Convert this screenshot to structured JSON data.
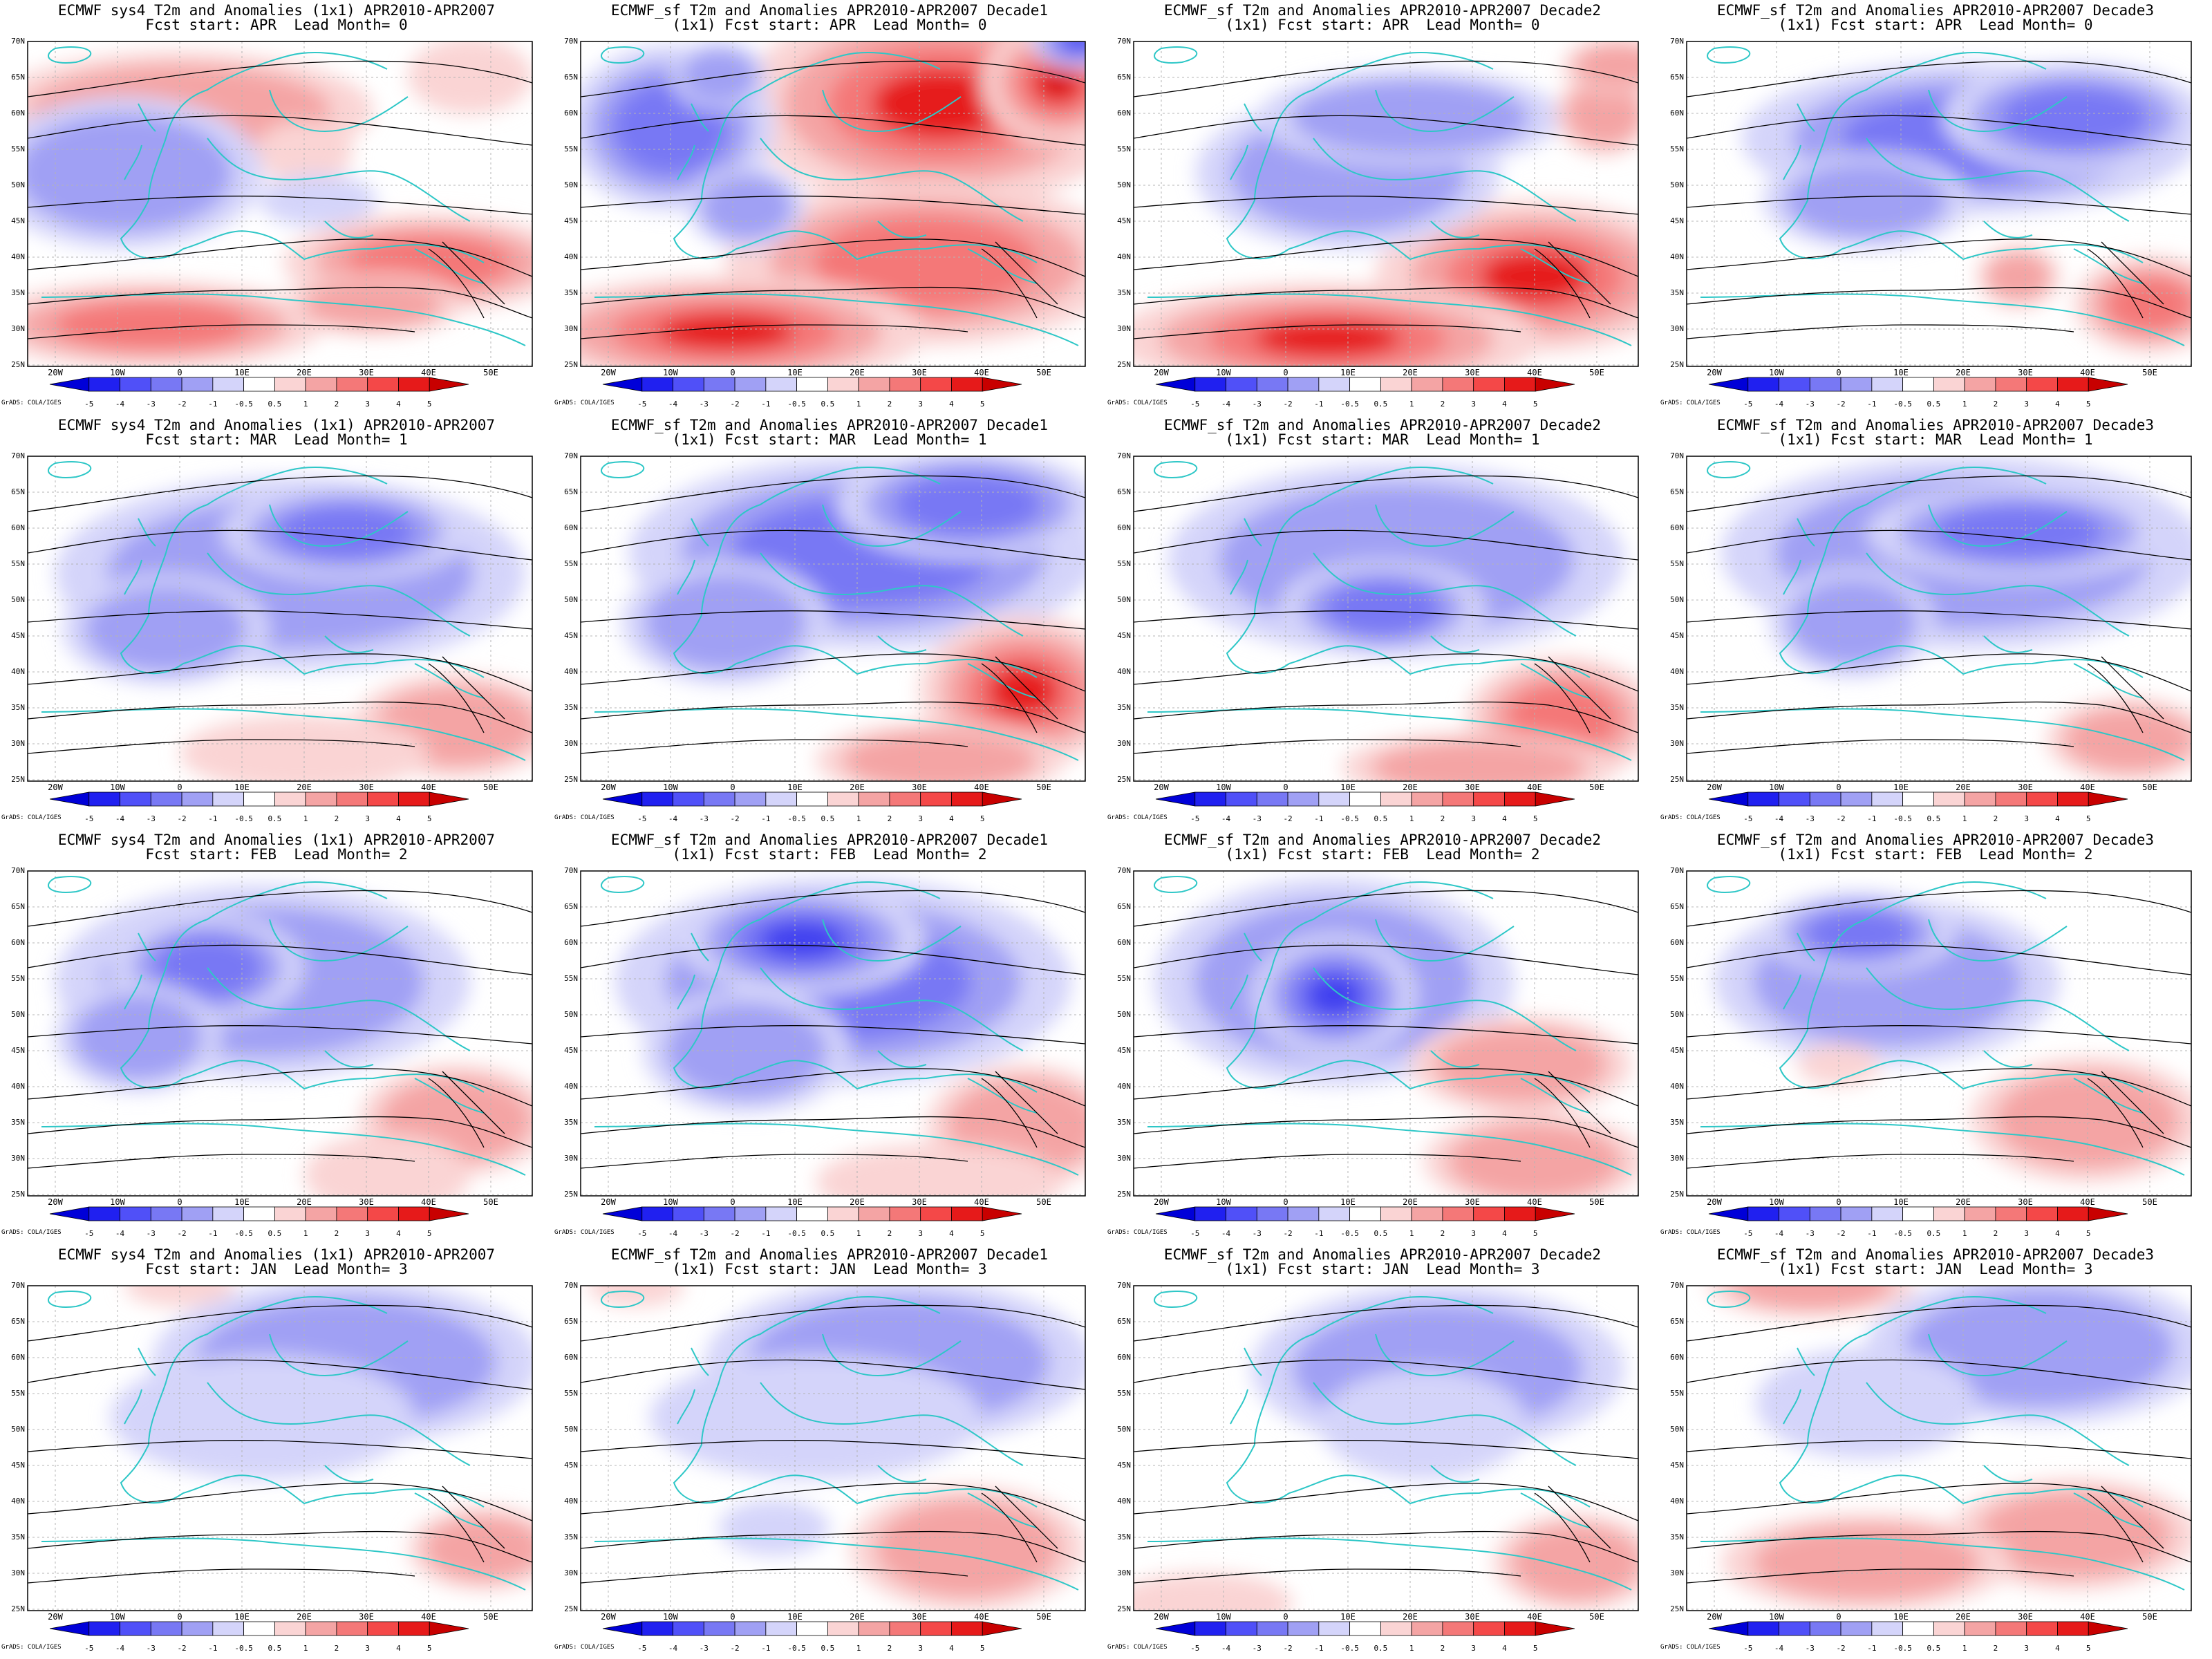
{
  "common": {
    "lat_labels": [
      "70N",
      "65N",
      "60N",
      "55N",
      "50N",
      "45N",
      "40N",
      "35N",
      "30N",
      "25N"
    ],
    "lon_labels": [
      "20W",
      "10W",
      "0",
      "10E",
      "20E",
      "30E",
      "40E",
      "50E"
    ],
    "colorbar_labels": [
      "-5",
      "-4",
      "-3",
      "-2",
      "-1",
      "-0.5",
      "0.5",
      "1",
      "2",
      "3",
      "4",
      "5"
    ],
    "colorbar_colors": [
      "#0000d8",
      "#2020f0",
      "#5050f8",
      "#7878f4",
      "#a0a0f4",
      "#d4d4fa",
      "#ffffff",
      "#fad4d4",
      "#f4a4a4",
      "#f47878",
      "#f44848",
      "#e61a1a",
      "#c80000"
    ],
    "credit": "GrADS: COLA/IGES",
    "colors": {
      "land_border": "#2ec7c7",
      "contour": "#000000",
      "grid": "#b4b4b4"
    }
  },
  "panels": [
    {
      "title1": "ECMWF sys4 T2m and Anomalies (1x1) APR2010-APR2007",
      "title2": "Fcst start: APR  Lead Month= 0",
      "blobs": [
        [
          "r",
          260,
          160,
          280,
          85,
          2
        ],
        [
          "r",
          620,
          380,
          210,
          70,
          3
        ],
        [
          "r",
          220,
          470,
          250,
          62,
          3
        ],
        [
          "r",
          540,
          440,
          130,
          45,
          2
        ],
        [
          "r",
          440,
          220,
          70,
          45,
          1
        ],
        [
          "b",
          180,
          250,
          200,
          110,
          2
        ],
        [
          "b",
          460,
          290,
          85,
          38,
          1
        ],
        [
          "r",
          680,
          110,
          90,
          55,
          1
        ]
      ]
    },
    {
      "title1": "ECMWF_sf T2m and Anomalies APR2010-APR2007 Decade1",
      "title2": "(1x1) Fcst start: APR  Lead Month= 0",
      "blobs": [
        [
          "r",
          560,
          150,
          290,
          150,
          4
        ],
        [
          "r",
          540,
          380,
          290,
          120,
          3
        ],
        [
          "r",
          250,
          480,
          290,
          80,
          4
        ],
        [
          "r",
          730,
          120,
          110,
          90,
          5
        ],
        [
          "b",
          170,
          185,
          150,
          120,
          3
        ],
        [
          "b",
          280,
          300,
          85,
          60,
          2
        ],
        [
          "b",
          240,
          110,
          70,
          50,
          2
        ],
        [
          "b",
          760,
          60,
          70,
          40,
          4
        ]
      ]
    },
    {
      "title1": "ECMWF_sf T2m and Anomalies APR2010-APR2007 Decade2",
      "title2": "(1x1) Fcst start: APR  Lead Month= 0",
      "blobs": [
        [
          "r",
          620,
          400,
          230,
          110,
          4
        ],
        [
          "r",
          320,
          490,
          310,
          80,
          4
        ],
        [
          "b",
          350,
          250,
          220,
          110,
          2
        ],
        [
          "b",
          440,
          170,
          220,
          70,
          2
        ],
        [
          "r",
          720,
          165,
          70,
          60,
          2
        ],
        [
          "r",
          740,
          95,
          80,
          40,
          2
        ]
      ]
    },
    {
      "title1": "ECMWF_sf T2m and Anomalies APR2010-APR2007 Decade3",
      "title2": "(1x1) Fcst start: APR  Lead Month= 0",
      "blobs": [
        [
          "b",
          450,
          200,
          330,
          110,
          3
        ],
        [
          "b",
          600,
          170,
          190,
          80,
          3
        ],
        [
          "b",
          300,
          290,
          150,
          70,
          2
        ],
        [
          "r",
          710,
          440,
          110,
          70,
          3
        ],
        [
          "r",
          520,
          400,
          60,
          45,
          2
        ]
      ]
    },
    {
      "title1": "ECMWF sys4 T2m and Anomalies (1x1) APR2010-APR2007",
      "title2": "Fcst start: MAR  Lead Month= 1",
      "blobs": [
        [
          "b",
          420,
          230,
          340,
          140,
          2
        ],
        [
          "b",
          500,
          170,
          180,
          70,
          3
        ],
        [
          "b",
          240,
          310,
          150,
          80,
          2
        ],
        [
          "r",
          660,
          450,
          150,
          75,
          2
        ],
        [
          "r",
          440,
          490,
          180,
          55,
          1
        ]
      ]
    },
    {
      "title1": "ECMWF_sf T2m and Anomalies APR2010-APR2007 Decade1",
      "title2": "(1x1) Fcst start: MAR  Lead Month= 1",
      "blobs": [
        [
          "b",
          450,
          200,
          340,
          140,
          3
        ],
        [
          "b",
          600,
          130,
          190,
          80,
          3
        ],
        [
          "b",
          250,
          300,
          150,
          90,
          2
        ],
        [
          "r",
          680,
          400,
          150,
          110,
          4
        ],
        [
          "r",
          560,
          500,
          180,
          55,
          2
        ]
      ]
    },
    {
      "title1": "ECMWF_sf T2m and Anomalies APR2010-APR2007 Decade2",
      "title2": "(1x1) Fcst start: MAR  Lead Month= 1",
      "blobs": [
        [
          "b",
          420,
          210,
          330,
          140,
          2
        ],
        [
          "b",
          400,
          280,
          150,
          70,
          3
        ],
        [
          "r",
          660,
          440,
          140,
          90,
          3
        ],
        [
          "r",
          540,
          510,
          200,
          50,
          2
        ]
      ]
    },
    {
      "title1": "ECMWF_sf T2m and Anomalies APR2010-APR2007 Decade3",
      "title2": "(1x1) Fcst start: MAR  Lead Month= 1",
      "blobs": [
        [
          "b",
          440,
          200,
          350,
          140,
          2
        ],
        [
          "b",
          520,
          170,
          220,
          70,
          3
        ],
        [
          "b",
          280,
          300,
          120,
          80,
          2
        ],
        [
          "r",
          680,
          470,
          120,
          60,
          2
        ]
      ]
    },
    {
      "title1": "ECMWF sys4 T2m and Anomalies (1x1) APR2010-APR2007",
      "title2": "Fcst start: FEB  Lead Month= 2",
      "blobs": [
        [
          "b",
          380,
          220,
          300,
          140,
          2
        ],
        [
          "b",
          300,
          200,
          140,
          80,
          3
        ],
        [
          "b",
          200,
          300,
          120,
          80,
          2
        ],
        [
          "r",
          660,
          420,
          140,
          80,
          2
        ],
        [
          "r",
          560,
          500,
          120,
          60,
          1
        ]
      ]
    },
    {
      "title1": "ECMWF_sf T2m and Anomalies APR2010-APR2007 Decade1",
      "title2": "(1x1) Fcst start: FEB  Lead Month= 2",
      "blobs": [
        [
          "b",
          420,
          220,
          330,
          150,
          3
        ],
        [
          "b",
          360,
          160,
          180,
          80,
          4
        ],
        [
          "b",
          280,
          320,
          150,
          90,
          2
        ],
        [
          "r",
          680,
          430,
          140,
          90,
          2
        ],
        [
          "r",
          560,
          510,
          180,
          55,
          1
        ]
      ]
    },
    {
      "title1": "ECMWF_sf T2m and Anomalies APR2010-APR2007 Decade2",
      "title2": "(1x1) Fcst start: FEB  Lead Month= 2",
      "blobs": [
        [
          "b",
          330,
          220,
          260,
          150,
          2
        ],
        [
          "b",
          330,
          240,
          120,
          90,
          4
        ],
        [
          "r",
          600,
          340,
          160,
          70,
          2
        ],
        [
          "r",
          620,
          480,
          160,
          70,
          2
        ]
      ]
    },
    {
      "title1": "ECMWF_sf T2m and Anomalies APR2010-APR2007 Decade3",
      "title2": "(1x1) Fcst start: FEB  Lead Month= 2",
      "blobs": [
        [
          "b",
          330,
          220,
          250,
          120,
          2
        ],
        [
          "b",
          290,
          150,
          140,
          60,
          3
        ],
        [
          "r",
          620,
          420,
          170,
          90,
          2
        ],
        [
          "r",
          260,
          340,
          60,
          30,
          1
        ]
      ]
    },
    {
      "title1": "ECMWF sys4 T2m and Anomalies (1x1) APR2010-APR2007",
      "title2": "Fcst start: JAN  Lead Month= 3",
      "blobs": [
        [
          "b",
          500,
          170,
          280,
          120,
          2
        ],
        [
          "b",
          380,
          250,
          220,
          90,
          1
        ],
        [
          "r",
          700,
          440,
          110,
          60,
          2
        ],
        [
          "r",
          260,
          60,
          80,
          30,
          1
        ]
      ]
    },
    {
      "title1": "ECMWF_sf T2m and Anomalies APR2010-APR2007 Decade1",
      "title2": "(1x1) Fcst start: JAN  Lead Month= 3",
      "blobs": [
        [
          "b",
          500,
          170,
          280,
          120,
          2
        ],
        [
          "b",
          380,
          250,
          240,
          90,
          1
        ],
        [
          "r",
          600,
          440,
          170,
          90,
          2
        ],
        [
          "r",
          120,
          60,
          70,
          30,
          1
        ],
        [
          "b",
          320,
          410,
          80,
          40,
          1
        ]
      ]
    },
    {
      "title1": "ECMWF_sf T2m and Anomalies APR2010-APR2007 Decade2",
      "title2": "(1x1) Fcst start: JAN  Lead Month= 3",
      "blobs": [
        [
          "b",
          480,
          180,
          270,
          120,
          2
        ],
        [
          "b",
          460,
          260,
          150,
          80,
          1
        ],
        [
          "r",
          680,
          460,
          120,
          70,
          2
        ],
        [
          "r",
          140,
          520,
          130,
          45,
          1
        ]
      ]
    },
    {
      "title1": "ECMWF_sf T2m and Anomalies APR2010-APR2007 Decade3",
      "title2": "(1x1) Fcst start: JAN  Lead Month= 3",
      "blobs": [
        [
          "b",
          550,
          150,
          250,
          110,
          2
        ],
        [
          "b",
          300,
          230,
          160,
          80,
          1
        ],
        [
          "r",
          220,
          60,
          150,
          45,
          2
        ],
        [
          "r",
          600,
          420,
          180,
          80,
          2
        ],
        [
          "r",
          300,
          460,
          210,
          70,
          2
        ]
      ]
    }
  ]
}
